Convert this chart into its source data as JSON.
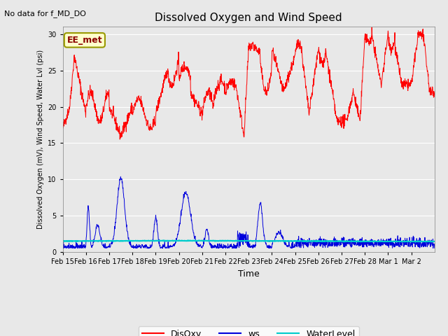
{
  "title": "Dissolved Oxygen and Wind Speed",
  "top_left_text": "No data for f_MD_DO",
  "box_label": "EE_met",
  "ylabel": "Dissolved Oxygen (mV), Wind Speed, Water Lvl (psi)",
  "xlabel": "Time",
  "ylim": [
    0,
    31
  ],
  "yticks": [
    0,
    5,
    10,
    15,
    20,
    25,
    30
  ],
  "bg_color": "#e8e8e8",
  "disoxy_color": "#ff0000",
  "ws_color": "#0000dd",
  "waterlevel_color": "#00cccc",
  "legend_labels": [
    "DisOxy",
    "ws",
    "WaterLevel"
  ],
  "date_labels": [
    "Feb 15",
    "Feb 16",
    "Feb 17",
    "Feb 18",
    "Feb 19",
    "Feb 20",
    "Feb 21",
    "Feb 22",
    "Feb 23",
    "Feb 24",
    "Feb 25",
    "Feb 26",
    "Feb 27",
    "Feb 28",
    "Mar 1",
    "Mar 2"
  ],
  "seed": 42
}
